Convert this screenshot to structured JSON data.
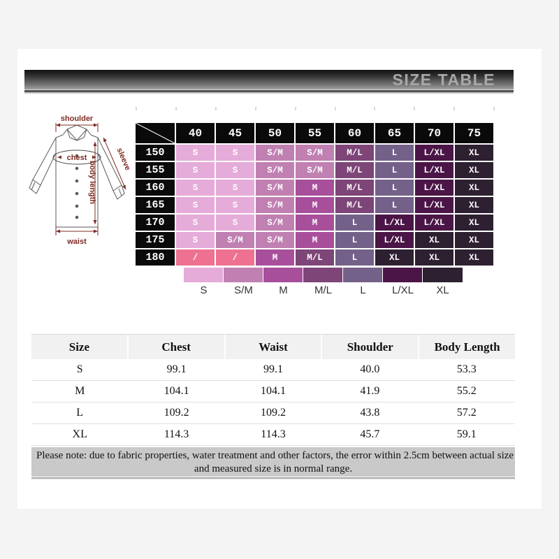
{
  "banner": {
    "title": "SIZE TABLE"
  },
  "diagram": {
    "shoulder": "shoulder",
    "chest": "chest",
    "sleeve": "sleeve",
    "body_length": "body length",
    "waist": "waist"
  },
  "size_matrix": {
    "weight_headers": [
      "40",
      "45",
      "50",
      "55",
      "60",
      "65",
      "70",
      "75"
    ],
    "rows": [
      {
        "label": "150",
        "cells": [
          "S",
          "S",
          "S/M",
          "S/M",
          "M/L",
          "L",
          "L/XL",
          "XL"
        ]
      },
      {
        "label": "155",
        "cells": [
          "S",
          "S",
          "S/M",
          "S/M",
          "M/L",
          "L",
          "L/XL",
          "XL"
        ]
      },
      {
        "label": "160",
        "cells": [
          "S",
          "S",
          "S/M",
          "M",
          "M/L",
          "L",
          "L/XL",
          "XL"
        ]
      },
      {
        "label": "165",
        "cells": [
          "S",
          "S",
          "S/M",
          "M",
          "M/L",
          "L",
          "L/XL",
          "XL"
        ]
      },
      {
        "label": "170",
        "cells": [
          "S",
          "S",
          "S/M",
          "M",
          "L",
          "L/XL",
          "L/XL",
          "XL"
        ]
      },
      {
        "label": "175",
        "cells": [
          "S",
          "S/M",
          "S/M",
          "M",
          "L",
          "L/XL",
          "XL",
          "XL"
        ]
      },
      {
        "label": "180",
        "cells": [
          "/",
          "/",
          "M",
          "M/L",
          "L",
          "XL",
          "XL",
          "XL"
        ]
      }
    ]
  },
  "size_colors": {
    "S": "#e5abd9",
    "S/M": "#c080b2",
    "M": "#a84f9c",
    "M/L": "#7d4578",
    "L": "#746189",
    "L/XL": "#4b1647",
    "XL": "#2d2030",
    "/": "#ee7191"
  },
  "legend": {
    "items": [
      "S",
      "S/M",
      "M",
      "M/L",
      "L",
      "L/XL",
      "XL"
    ]
  },
  "measurement_table": {
    "headers": [
      "Size",
      "Chest",
      "Waist",
      "Shoulder",
      "Body Length"
    ],
    "rows": [
      [
        "S",
        "99.1",
        "99.1",
        "40.0",
        "53.3"
      ],
      [
        "M",
        "104.1",
        "104.1",
        "41.9",
        "55.2"
      ],
      [
        "L",
        "109.2",
        "109.2",
        "43.8",
        "57.2"
      ],
      [
        "XL",
        "114.3",
        "114.3",
        "45.7",
        "59.1"
      ]
    ]
  },
  "note": {
    "line1": "Please note: due to fabric properties, water treatment and other factors, the error within 2.5cm between actual size",
    "line2": "and measured size is in normal range."
  }
}
